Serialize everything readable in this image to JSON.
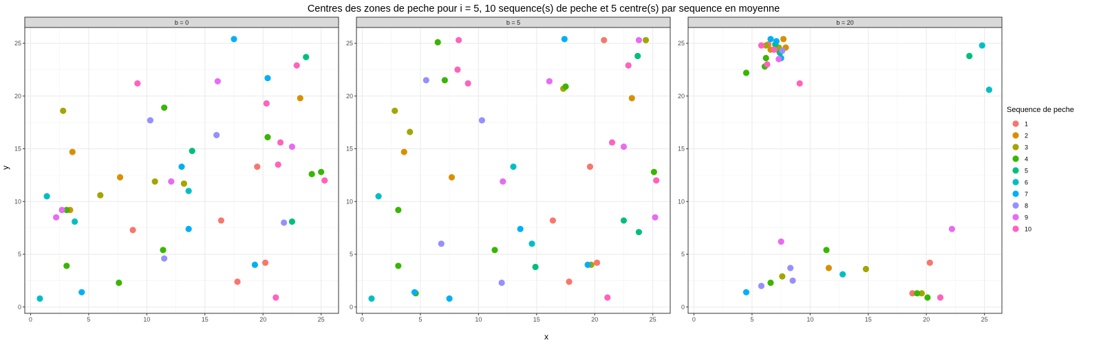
{
  "title": "Centres des zones de peche pour i = 5, 10 sequence(s) de peche et 5 centre(s) par sequence en moyenne",
  "xlabel": "x",
  "ylabel": "y",
  "legend": {
    "title": "Sequence de peche",
    "placement": "right",
    "items": [
      {
        "label": "1",
        "color": "#F8766D"
      },
      {
        "label": "2",
        "color": "#D89000"
      },
      {
        "label": "3",
        "color": "#A3A500"
      },
      {
        "label": "4",
        "color": "#39B600"
      },
      {
        "label": "5",
        "color": "#00BF7D"
      },
      {
        "label": "6",
        "color": "#00BFC4"
      },
      {
        "label": "7",
        "color": "#00B0F6"
      },
      {
        "label": "8",
        "color": "#9590FF"
      },
      {
        "label": "9",
        "color": "#E76BF3"
      },
      {
        "label": "10",
        "color": "#FF62BC"
      }
    ]
  },
  "chart_data": {
    "type": "scatter",
    "title": "Centres des zones de peche pour i = 5, 10 sequence(s) de peche et 5 centre(s) par sequence en moyenne",
    "xlabel": "x",
    "ylabel": "y",
    "xlim": [
      -0.5,
      26.5
    ],
    "ylim": [
      -0.6,
      26.5
    ],
    "xticks": [
      0,
      5,
      10,
      15,
      20,
      25
    ],
    "yticks": [
      0,
      5,
      10,
      15,
      20,
      25
    ],
    "grid": true,
    "legend_placement": "right",
    "panels": [
      {
        "label": "b = 0",
        "points": [
          {
            "s": 1,
            "x": 8.8,
            "y": 7.3
          },
          {
            "s": 1,
            "x": 16.4,
            "y": 8.2
          },
          {
            "s": 1,
            "x": 19.5,
            "y": 13.3
          },
          {
            "s": 1,
            "x": 20.2,
            "y": 4.2
          },
          {
            "s": 1,
            "x": 17.8,
            "y": 2.4
          },
          {
            "s": 2,
            "x": 3.6,
            "y": 14.7
          },
          {
            "s": 2,
            "x": 3.4,
            "y": 9.2
          },
          {
            "s": 2,
            "x": 7.7,
            "y": 12.3
          },
          {
            "s": 2,
            "x": 23.2,
            "y": 19.8
          },
          {
            "s": 3,
            "x": 2.8,
            "y": 18.6
          },
          {
            "s": 3,
            "x": 6.0,
            "y": 10.6
          },
          {
            "s": 3,
            "x": 10.7,
            "y": 11.9
          },
          {
            "s": 3,
            "x": 13.2,
            "y": 11.7
          },
          {
            "s": 4,
            "x": 3.1,
            "y": 9.2
          },
          {
            "s": 4,
            "x": 3.1,
            "y": 3.9
          },
          {
            "s": 4,
            "x": 7.6,
            "y": 2.3
          },
          {
            "s": 4,
            "x": 11.5,
            "y": 18.9
          },
          {
            "s": 4,
            "x": 11.4,
            "y": 5.4
          },
          {
            "s": 4,
            "x": 20.4,
            "y": 16.1
          },
          {
            "s": 4,
            "x": 24.2,
            "y": 12.6
          },
          {
            "s": 4,
            "x": 25.0,
            "y": 12.8
          },
          {
            "s": 5,
            "x": 13.9,
            "y": 14.8
          },
          {
            "s": 5,
            "x": 22.5,
            "y": 8.1
          },
          {
            "s": 5,
            "x": 23.7,
            "y": 23.7
          },
          {
            "s": 6,
            "x": 1.4,
            "y": 10.5
          },
          {
            "s": 6,
            "x": 3.8,
            "y": 8.1
          },
          {
            "s": 6,
            "x": 0.8,
            "y": 0.8
          },
          {
            "s": 6,
            "x": 13.6,
            "y": 11.0
          },
          {
            "s": 7,
            "x": 4.4,
            "y": 1.4
          },
          {
            "s": 7,
            "x": 13.0,
            "y": 13.3
          },
          {
            "s": 7,
            "x": 13.6,
            "y": 7.4
          },
          {
            "s": 7,
            "x": 17.5,
            "y": 25.4
          },
          {
            "s": 7,
            "x": 20.4,
            "y": 21.7
          },
          {
            "s": 7,
            "x": 19.3,
            "y": 4.0
          },
          {
            "s": 8,
            "x": 10.3,
            "y": 17.7
          },
          {
            "s": 8,
            "x": 11.5,
            "y": 4.6
          },
          {
            "s": 8,
            "x": 16.0,
            "y": 16.3
          },
          {
            "s": 8,
            "x": 21.8,
            "y": 8.0
          },
          {
            "s": 9,
            "x": 2.2,
            "y": 8.5
          },
          {
            "s": 9,
            "x": 2.7,
            "y": 9.2
          },
          {
            "s": 9,
            "x": 12.1,
            "y": 11.9
          },
          {
            "s": 9,
            "x": 16.1,
            "y": 21.4
          },
          {
            "s": 9,
            "x": 22.5,
            "y": 15.2
          },
          {
            "s": 10,
            "x": 9.2,
            "y": 21.2
          },
          {
            "s": 10,
            "x": 20.3,
            "y": 19.3
          },
          {
            "s": 10,
            "x": 21.3,
            "y": 13.5
          },
          {
            "s": 10,
            "x": 21.5,
            "y": 15.6
          },
          {
            "s": 10,
            "x": 22.9,
            "y": 22.9
          },
          {
            "s": 10,
            "x": 25.3,
            "y": 12.0
          },
          {
            "s": 10,
            "x": 21.1,
            "y": 0.9
          }
        ]
      },
      {
        "label": "b = 5",
        "points": [
          {
            "s": 1,
            "x": 16.4,
            "y": 8.2
          },
          {
            "s": 1,
            "x": 19.6,
            "y": 13.3
          },
          {
            "s": 1,
            "x": 20.8,
            "y": 25.3
          },
          {
            "s": 1,
            "x": 20.2,
            "y": 4.2
          },
          {
            "s": 1,
            "x": 17.8,
            "y": 2.4
          },
          {
            "s": 2,
            "x": 3.6,
            "y": 14.7
          },
          {
            "s": 2,
            "x": 7.7,
            "y": 12.3
          },
          {
            "s": 2,
            "x": 23.2,
            "y": 19.8
          },
          {
            "s": 3,
            "x": 2.8,
            "y": 18.6
          },
          {
            "s": 3,
            "x": 4.1,
            "y": 16.6
          },
          {
            "s": 3,
            "x": 17.3,
            "y": 20.7
          },
          {
            "s": 3,
            "x": 19.7,
            "y": 4.0
          },
          {
            "s": 3,
            "x": 24.4,
            "y": 25.3
          },
          {
            "s": 4,
            "x": 3.1,
            "y": 9.2
          },
          {
            "s": 4,
            "x": 3.1,
            "y": 3.9
          },
          {
            "s": 4,
            "x": 4.6,
            "y": 1.3
          },
          {
            "s": 4,
            "x": 6.5,
            "y": 25.1
          },
          {
            "s": 4,
            "x": 7.1,
            "y": 21.5
          },
          {
            "s": 4,
            "x": 11.4,
            "y": 5.4
          },
          {
            "s": 4,
            "x": 17.5,
            "y": 20.9
          },
          {
            "s": 4,
            "x": 25.1,
            "y": 12.8
          },
          {
            "s": 5,
            "x": 14.9,
            "y": 3.8
          },
          {
            "s": 5,
            "x": 22.5,
            "y": 8.2
          },
          {
            "s": 5,
            "x": 23.7,
            "y": 23.8
          },
          {
            "s": 5,
            "x": 23.8,
            "y": 7.1
          },
          {
            "s": 6,
            "x": 1.4,
            "y": 10.5
          },
          {
            "s": 6,
            "x": 0.8,
            "y": 0.8
          },
          {
            "s": 6,
            "x": 13.0,
            "y": 13.3
          },
          {
            "s": 6,
            "x": 14.6,
            "y": 6.0
          },
          {
            "s": 7,
            "x": 4.5,
            "y": 1.4
          },
          {
            "s": 7,
            "x": 7.5,
            "y": 0.8
          },
          {
            "s": 7,
            "x": 13.6,
            "y": 7.4
          },
          {
            "s": 7,
            "x": 17.4,
            "y": 25.4
          },
          {
            "s": 7,
            "x": 19.4,
            "y": 4.0
          },
          {
            "s": 8,
            "x": 5.5,
            "y": 21.5
          },
          {
            "s": 8,
            "x": 6.8,
            "y": 6.0
          },
          {
            "s": 8,
            "x": 10.3,
            "y": 17.7
          },
          {
            "s": 8,
            "x": 12.0,
            "y": 2.3
          },
          {
            "s": 9,
            "x": 12.1,
            "y": 11.9
          },
          {
            "s": 9,
            "x": 16.1,
            "y": 21.4
          },
          {
            "s": 9,
            "x": 22.5,
            "y": 15.2
          },
          {
            "s": 9,
            "x": 23.8,
            "y": 25.3
          },
          {
            "s": 9,
            "x": 25.2,
            "y": 8.5
          },
          {
            "s": 10,
            "x": 8.3,
            "y": 25.3
          },
          {
            "s": 10,
            "x": 8.2,
            "y": 22.5
          },
          {
            "s": 10,
            "x": 9.1,
            "y": 21.2
          },
          {
            "s": 10,
            "x": 21.5,
            "y": 15.6
          },
          {
            "s": 10,
            "x": 22.9,
            "y": 22.9
          },
          {
            "s": 10,
            "x": 25.3,
            "y": 12.0
          },
          {
            "s": 10,
            "x": 21.1,
            "y": 0.9
          }
        ]
      },
      {
        "label": "b = 20",
        "points": [
          {
            "s": 1,
            "x": 6.4,
            "y": 24.9
          },
          {
            "s": 1,
            "x": 7.3,
            "y": 24.3
          },
          {
            "s": 1,
            "x": 20.3,
            "y": 4.2
          },
          {
            "s": 1,
            "x": 18.8,
            "y": 1.3
          },
          {
            "s": 2,
            "x": 7.7,
            "y": 25.4
          },
          {
            "s": 2,
            "x": 6.6,
            "y": 24.4
          },
          {
            "s": 2,
            "x": 7.9,
            "y": 24.6
          },
          {
            "s": 2,
            "x": 11.6,
            "y": 3.7
          },
          {
            "s": 3,
            "x": 6.2,
            "y": 24.8
          },
          {
            "s": 3,
            "x": 7.3,
            "y": 24.6
          },
          {
            "s": 3,
            "x": 7.6,
            "y": 2.9
          },
          {
            "s": 3,
            "x": 14.8,
            "y": 3.6
          },
          {
            "s": 3,
            "x": 19.6,
            "y": 1.3
          },
          {
            "s": 4,
            "x": 4.5,
            "y": 22.2
          },
          {
            "s": 4,
            "x": 6.1,
            "y": 22.8
          },
          {
            "s": 4,
            "x": 6.2,
            "y": 23.6
          },
          {
            "s": 4,
            "x": 6.6,
            "y": 2.3
          },
          {
            "s": 4,
            "x": 11.4,
            "y": 5.4
          },
          {
            "s": 4,
            "x": 19.2,
            "y": 1.3
          },
          {
            "s": 4,
            "x": 20.1,
            "y": 0.9
          },
          {
            "s": 5,
            "x": 7.0,
            "y": 24.9
          },
          {
            "s": 5,
            "x": 23.7,
            "y": 23.8
          },
          {
            "s": 5,
            "x": 7.4,
            "y": 24.1
          },
          {
            "s": 6,
            "x": 24.8,
            "y": 24.8
          },
          {
            "s": 6,
            "x": 25.4,
            "y": 20.6
          },
          {
            "s": 6,
            "x": 12.8,
            "y": 3.1
          },
          {
            "s": 7,
            "x": 4.5,
            "y": 1.4
          },
          {
            "s": 7,
            "x": 6.6,
            "y": 25.4
          },
          {
            "s": 7,
            "x": 7.5,
            "y": 23.6
          },
          {
            "s": 7,
            "x": 7.1,
            "y": 25.2
          },
          {
            "s": 8,
            "x": 5.8,
            "y": 2.0
          },
          {
            "s": 8,
            "x": 8.3,
            "y": 3.7
          },
          {
            "s": 8,
            "x": 8.5,
            "y": 2.5
          },
          {
            "s": 8,
            "x": 7.6,
            "y": 24.3
          },
          {
            "s": 9,
            "x": 7.5,
            "y": 6.2
          },
          {
            "s": 9,
            "x": 22.2,
            "y": 7.4
          },
          {
            "s": 9,
            "x": 7.3,
            "y": 23.5
          },
          {
            "s": 10,
            "x": 5.8,
            "y": 24.8
          },
          {
            "s": 10,
            "x": 6.3,
            "y": 23.0
          },
          {
            "s": 10,
            "x": 9.1,
            "y": 21.2
          },
          {
            "s": 10,
            "x": 21.2,
            "y": 0.9
          },
          {
            "s": 10,
            "x": 6.9,
            "y": 24.4
          }
        ]
      }
    ]
  }
}
